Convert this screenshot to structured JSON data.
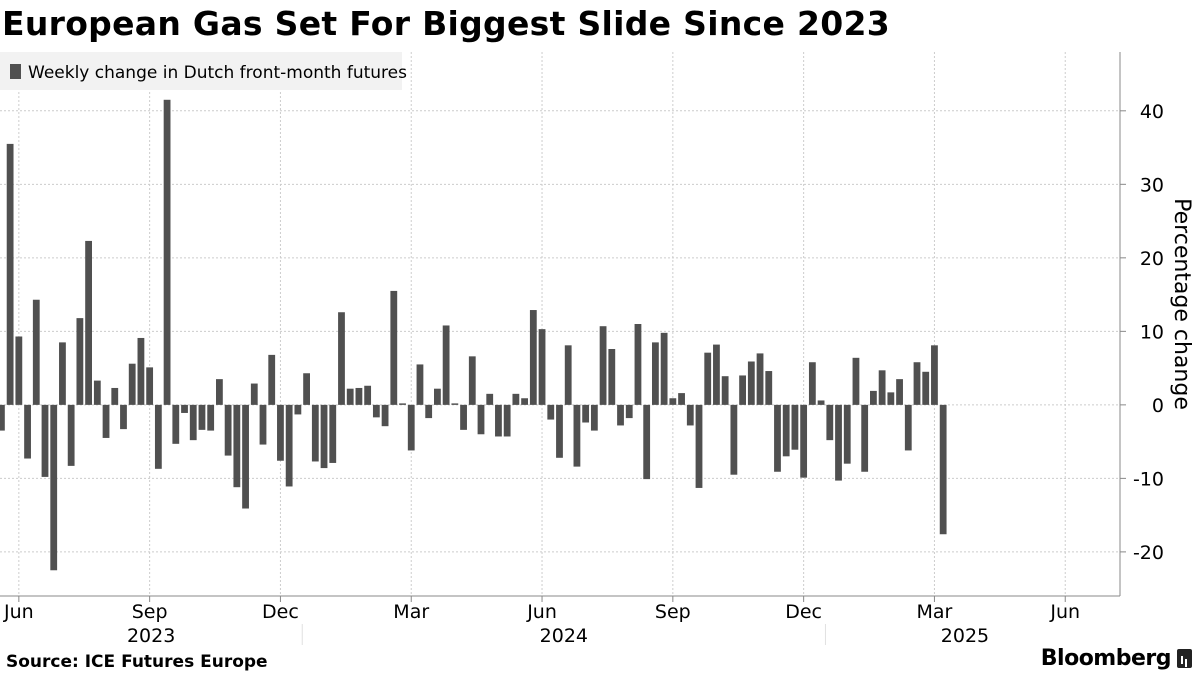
{
  "title": "European Gas Set For Biggest Slide Since 2023",
  "source": "Source: ICE Futures Europe",
  "brand": "Bloomberg",
  "colors": {
    "bar": "#505050",
    "grid": "#cccccc",
    "axis": "#888888",
    "text": "#000000",
    "legend_bg": "#f2f2f2"
  },
  "chart_data": {
    "type": "bar",
    "series": [
      {
        "name": "Weekly change in Dutch front-month futures",
        "values": [
          -3.5,
          35.5,
          9.3,
          -7.3,
          14.3,
          -9.8,
          -22.5,
          8.5,
          -8.3,
          11.8,
          22.3,
          3.3,
          -4.5,
          2.3,
          -3.3,
          5.6,
          9.1,
          5.1,
          -8.7,
          41.5,
          -5.3,
          -1.1,
          -4.8,
          -3.4,
          -3.5,
          3.5,
          -6.9,
          -11.2,
          -14.1,
          2.9,
          -5.4,
          6.8,
          -7.6,
          -11.1,
          -1.3,
          4.3,
          -7.7,
          -8.6,
          -7.9,
          12.6,
          2.2,
          2.3,
          2.6,
          -1.7,
          -2.9,
          15.5,
          0.2,
          -6.2,
          5.5,
          -1.8,
          2.2,
          10.8,
          0.2,
          -3.4,
          6.6,
          -4.0,
          1.5,
          -4.3,
          -4.3,
          1.5,
          0.9,
          12.9,
          10.3,
          -2.0,
          -7.2,
          8.1,
          -8.4,
          -2.4,
          -3.5,
          10.7,
          7.6,
          -2.8,
          -1.8,
          11.0,
          -10.1,
          8.5,
          9.8,
          0.9,
          1.6,
          -2.8,
          -11.3,
          7.1,
          8.2,
          3.9,
          -9.5,
          4.0,
          5.9,
          7.0,
          4.6,
          -9.1,
          -7.0,
          -6.1,
          -9.9,
          5.8,
          0.6,
          -4.8,
          -10.3,
          -8.0,
          6.4,
          -9.1,
          1.9,
          4.7,
          1.7,
          3.5,
          -6.2,
          5.8,
          4.5,
          8.1,
          -17.6
        ]
      }
    ],
    "ylim": [
      -26,
      48
    ],
    "yticks": [
      40,
      30,
      20,
      10,
      0,
      -10,
      -20
    ],
    "ytick_labels": [
      "40",
      "30",
      "20",
      "10",
      "0",
      "-10",
      "-20"
    ],
    "ylabel": "Percentage change",
    "month_ticks": [
      {
        "label": "Jun",
        "index": 2
      },
      {
        "label": "Sep",
        "index": 17
      },
      {
        "label": "Dec",
        "index": 32
      },
      {
        "label": "Mar",
        "index": 47
      },
      {
        "label": "Jun",
        "index": 62
      },
      {
        "label": "Sep",
        "index": 77
      },
      {
        "label": "Dec",
        "index": 92
      },
      {
        "label": "Mar",
        "index": 107
      },
      {
        "label": "Jun",
        "index": 122
      }
    ],
    "years": [
      {
        "label": "2023",
        "start_index": 0,
        "end_index": 35
      },
      {
        "label": "2024",
        "start_index": 35,
        "end_index": 95
      },
      {
        "label": "2025",
        "start_index": 95,
        "end_index": 127
      }
    ],
    "first_bar_index": 0,
    "grid": true,
    "legend_position": "top-left"
  }
}
